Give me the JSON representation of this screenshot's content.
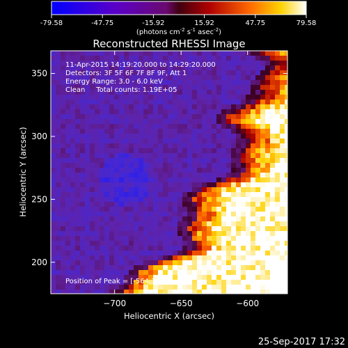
{
  "colorbar": {
    "ticks": [
      "-79.58",
      "-47.75",
      "-15.92",
      "15.92",
      "47.75",
      "79.58"
    ],
    "tick_values": [
      -79.58,
      -47.75,
      -15.92,
      15.92,
      47.75,
      79.58
    ],
    "range": [
      -79.58,
      79.58
    ],
    "unit_base": "(photons cm",
    "unit_exp1": "-2",
    "unit_mid": " s",
    "unit_exp2": "-1",
    "unit_mid2": " asec",
    "unit_exp3": "-2",
    "unit_end": ")"
  },
  "chart_data": {
    "type": "heatmap",
    "title": "Reconstructed RHESSI Image",
    "xlabel": "Heliocentric X (arcsec)",
    "ylabel": "Heliocentric Y (arcsec)",
    "xlim": [
      -748,
      -570
    ],
    "ylim": [
      175,
      368
    ],
    "xticks": [
      -700,
      -650,
      -600
    ],
    "xtick_labels": [
      "−700",
      "−650",
      "−600"
    ],
    "yticks": [
      200,
      250,
      300,
      350
    ],
    "ytick_labels": [
      "200",
      "250",
      "300",
      "350"
    ],
    "annotations": [
      "11-Apr-2015 14:19:20.000 to 14:29:20.000",
      "Detectors: 3F 5F 6F 7F 8F 9F, Att 1",
      "Energy Range: 3.0 - 6.0 keV",
      "Clean     Total counts: 1.19E+05"
    ],
    "peak_text": "Position of Peak = [-564,190]",
    "peak_position": [
      -564,
      190
    ],
    "colormap": "blue-purple-red-yellow-white",
    "colors": {
      "low": "#1010ff",
      "mid": "#6a1a8a",
      "high": "#ffffff"
    }
  },
  "footer": {
    "date": "25-Sep-2017 17:32"
  }
}
